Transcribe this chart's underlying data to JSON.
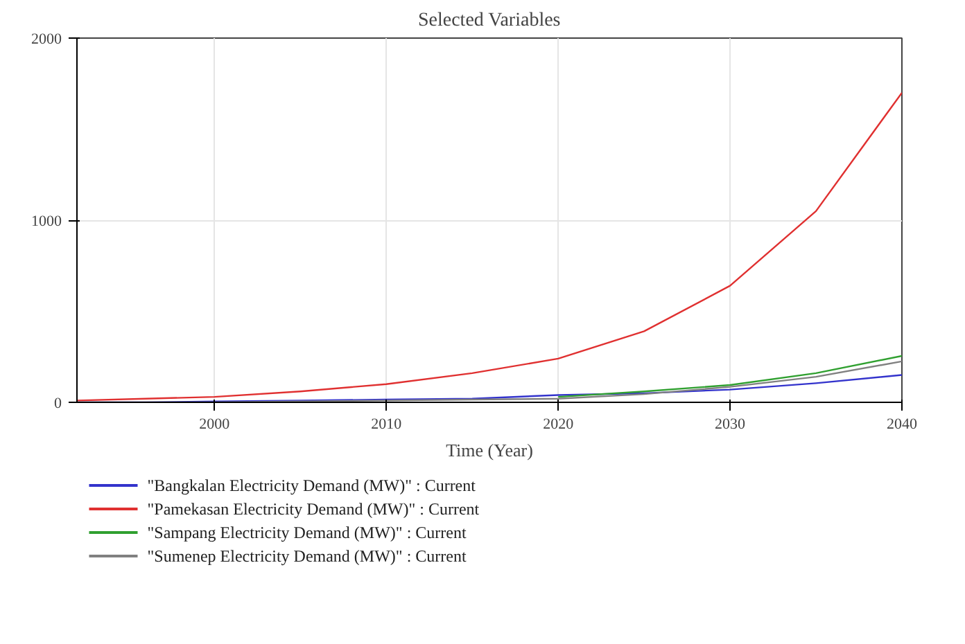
{
  "chart_data": {
    "type": "line",
    "title": "Selected Variables",
    "xlabel": "Time (Year)",
    "x": [
      1992,
      1996,
      2000,
      2005,
      2010,
      2015,
      2020,
      2025,
      2030,
      2035,
      2040
    ],
    "series": [
      {
        "name": "\"Bangkalan Electricity Demand (MW)\" : Current",
        "color": "#3333cc",
        "values": [
          0,
          0,
          5,
          10,
          15,
          20,
          40,
          50,
          70,
          105,
          150
        ]
      },
      {
        "name": "\"Pamekasan Electricity Demand (MW)\" : Current",
        "color": "#e03030",
        "values": [
          10,
          20,
          30,
          60,
          100,
          160,
          240,
          390,
          640,
          1050,
          1700
        ]
      },
      {
        "name": "\"Sampang Electricity Demand (MW)\" : Current",
        "color": "#30a030",
        "values": [
          null,
          null,
          null,
          null,
          null,
          null,
          30,
          60,
          95,
          160,
          255
        ]
      },
      {
        "name": "\"Sumenep Electricity Demand (MW)\" : Current",
        "color": "#808080",
        "values": [
          0,
          0,
          0,
          5,
          10,
          15,
          20,
          45,
          85,
          140,
          225
        ]
      }
    ],
    "xlim": [
      1992,
      2040
    ],
    "xticks": [
      2000,
      2010,
      2020,
      2030,
      2040
    ],
    "ylim": [
      0,
      2000
    ],
    "yticks": [
      0,
      1000,
      2000
    ],
    "grid": true,
    "legend": "bottom",
    "marker": "none",
    "line_style": "solid"
  }
}
